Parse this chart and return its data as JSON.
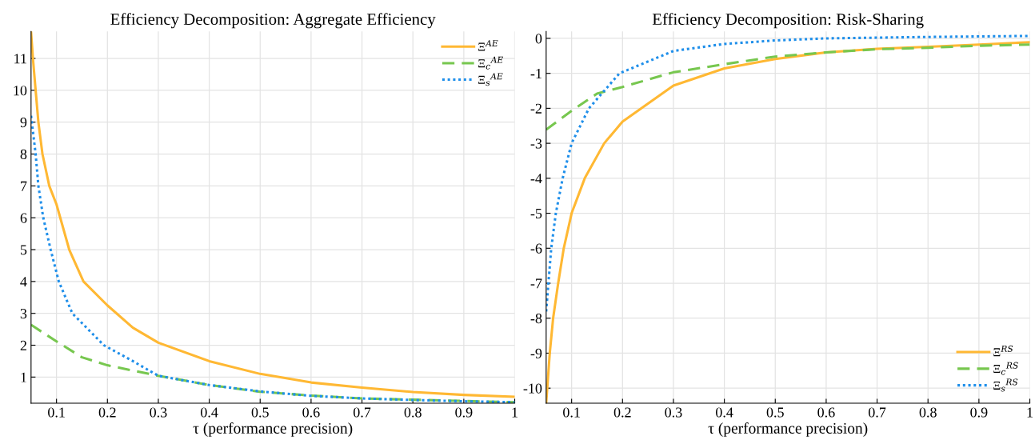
{
  "chart_data": [
    {
      "type": "line",
      "title": "Efficiency Decomposition: Aggregate Efficiency",
      "xlabel": "τ (performance precision)",
      "xlim": [
        0.05,
        1
      ],
      "ylim": [
        0.18,
        11.85
      ],
      "xticks": [
        0.1,
        0.2,
        0.3,
        0.4,
        0.5,
        0.6,
        0.7,
        0.8,
        0.9,
        1
      ],
      "yticks": [
        1,
        2,
        3,
        4,
        5,
        6,
        7,
        8,
        9,
        10,
        11
      ],
      "grid": true,
      "legend": "top right",
      "series": [
        {
          "name": "Ξ$^{AE}$",
          "color": "#ffb833",
          "line_style": "solid",
          "x": [
            0.05,
            0.0537,
            0.059,
            0.0644,
            0.0724,
            0.0858,
            0.1,
            0.125,
            0.153,
            0.2,
            0.25,
            0.3,
            0.4,
            0.5,
            0.6,
            0.7,
            0.8,
            0.9,
            1
          ],
          "values": [
            11.83,
            11,
            10,
            9,
            8,
            7,
            6.42,
            5,
            4,
            3.25,
            2.55,
            2.08,
            1.5,
            1.1,
            0.83,
            0.67,
            0.53,
            0.44,
            0.38
          ]
        },
        {
          "name": "Ξ$_{c}$$^{AE}$",
          "color": "#77c74f",
          "line_style": "dashed",
          "x": [
            0.05,
            0.1,
            0.15,
            0.2,
            0.3,
            0.4,
            0.5,
            0.6,
            0.7,
            0.8,
            0.9,
            1
          ],
          "values": [
            2.64,
            2.12,
            1.62,
            1.37,
            1.04,
            0.75,
            0.54,
            0.42,
            0.33,
            0.29,
            0.25,
            0.21
          ]
        },
        {
          "name": "Ξ$_{s}$$^{AE}$",
          "color": "#1f8fea",
          "line_style": "dotted",
          "x": [
            0.05,
            0.059,
            0.0644,
            0.074,
            0.0885,
            0.1045,
            0.131,
            0.193,
            0.25,
            0.3,
            0.4,
            0.5,
            0.6,
            0.7,
            0.8,
            0.9,
            1
          ],
          "values": [
            9.2,
            8,
            7,
            6,
            5,
            4,
            3,
            2,
            1.5,
            1.04,
            0.75,
            0.55,
            0.41,
            0.33,
            0.28,
            0.24,
            0.21
          ]
        }
      ]
    },
    {
      "type": "line",
      "title": "Efficiency Decomposition: Risk-Sharing",
      "xlabel": "τ (performance precision)",
      "xlim": [
        0.05,
        1
      ],
      "ylim": [
        -10.43,
        0.2
      ],
      "xticks": [
        0.1,
        0.2,
        0.3,
        0.4,
        0.5,
        0.6,
        0.7,
        0.8,
        0.9,
        1
      ],
      "yticks": [
        {
          "value": -10,
          "label": "-10"
        },
        {
          "value": -9,
          "label": "-9"
        },
        {
          "value": -8,
          "label": "-8"
        },
        {
          "value": -7,
          "label": "-7"
        },
        {
          "value": -6,
          "label": "-6"
        },
        {
          "value": -5,
          "label": "-5"
        },
        {
          "value": -4,
          "label": "-4"
        },
        {
          "value": -3,
          "label": "-3"
        },
        {
          "value": -2,
          "label": "-2"
        },
        {
          "value": -1,
          "label": "-1"
        },
        0
      ],
      "grid": true,
      "legend": "bottom right",
      "series": [
        {
          "name": "Ξ$^{RS}$",
          "color": "#ffb833",
          "line_style": "solid",
          "x": [
            0.05,
            0.0571,
            0.0637,
            0.0736,
            0.0846,
            0.1,
            0.1258,
            0.164,
            0.2,
            0.3,
            0.4,
            0.5,
            0.6,
            0.7,
            0.8,
            0.9,
            1
          ],
          "values": [
            -10.43,
            -9,
            -8,
            -7,
            -6,
            -5,
            -4,
            -3,
            -2.38,
            -1.35,
            -0.86,
            -0.59,
            -0.4,
            -0.3,
            -0.24,
            -0.18,
            -0.11
          ]
        },
        {
          "name": "Ξ$_{c}$$^{RS}$",
          "color": "#77c74f",
          "line_style": "dashed",
          "x": [
            0.05,
            0.1,
            0.15,
            0.2,
            0.3,
            0.4,
            0.5,
            0.6,
            0.7,
            0.8,
            0.9,
            1
          ],
          "values": [
            -2.61,
            -2.07,
            -1.58,
            -1.39,
            -0.97,
            -0.74,
            -0.52,
            -0.4,
            -0.31,
            -0.27,
            -0.21,
            -0.18
          ]
        },
        {
          "name": "Ξ$_{s}$$^{RS}$",
          "color": "#1f8fea",
          "line_style": "dotted",
          "x": [
            0.05,
            0.0544,
            0.06,
            0.069,
            0.0824,
            0.1,
            0.134,
            0.194,
            0.3,
            0.4,
            0.5,
            0.6,
            0.8,
            1
          ],
          "values": [
            -7.81,
            -7,
            -6,
            -5,
            -4,
            -3,
            -2,
            -1,
            -0.36,
            -0.16,
            -0.06,
            0,
            0.04,
            0.07
          ]
        }
      ]
    }
  ]
}
